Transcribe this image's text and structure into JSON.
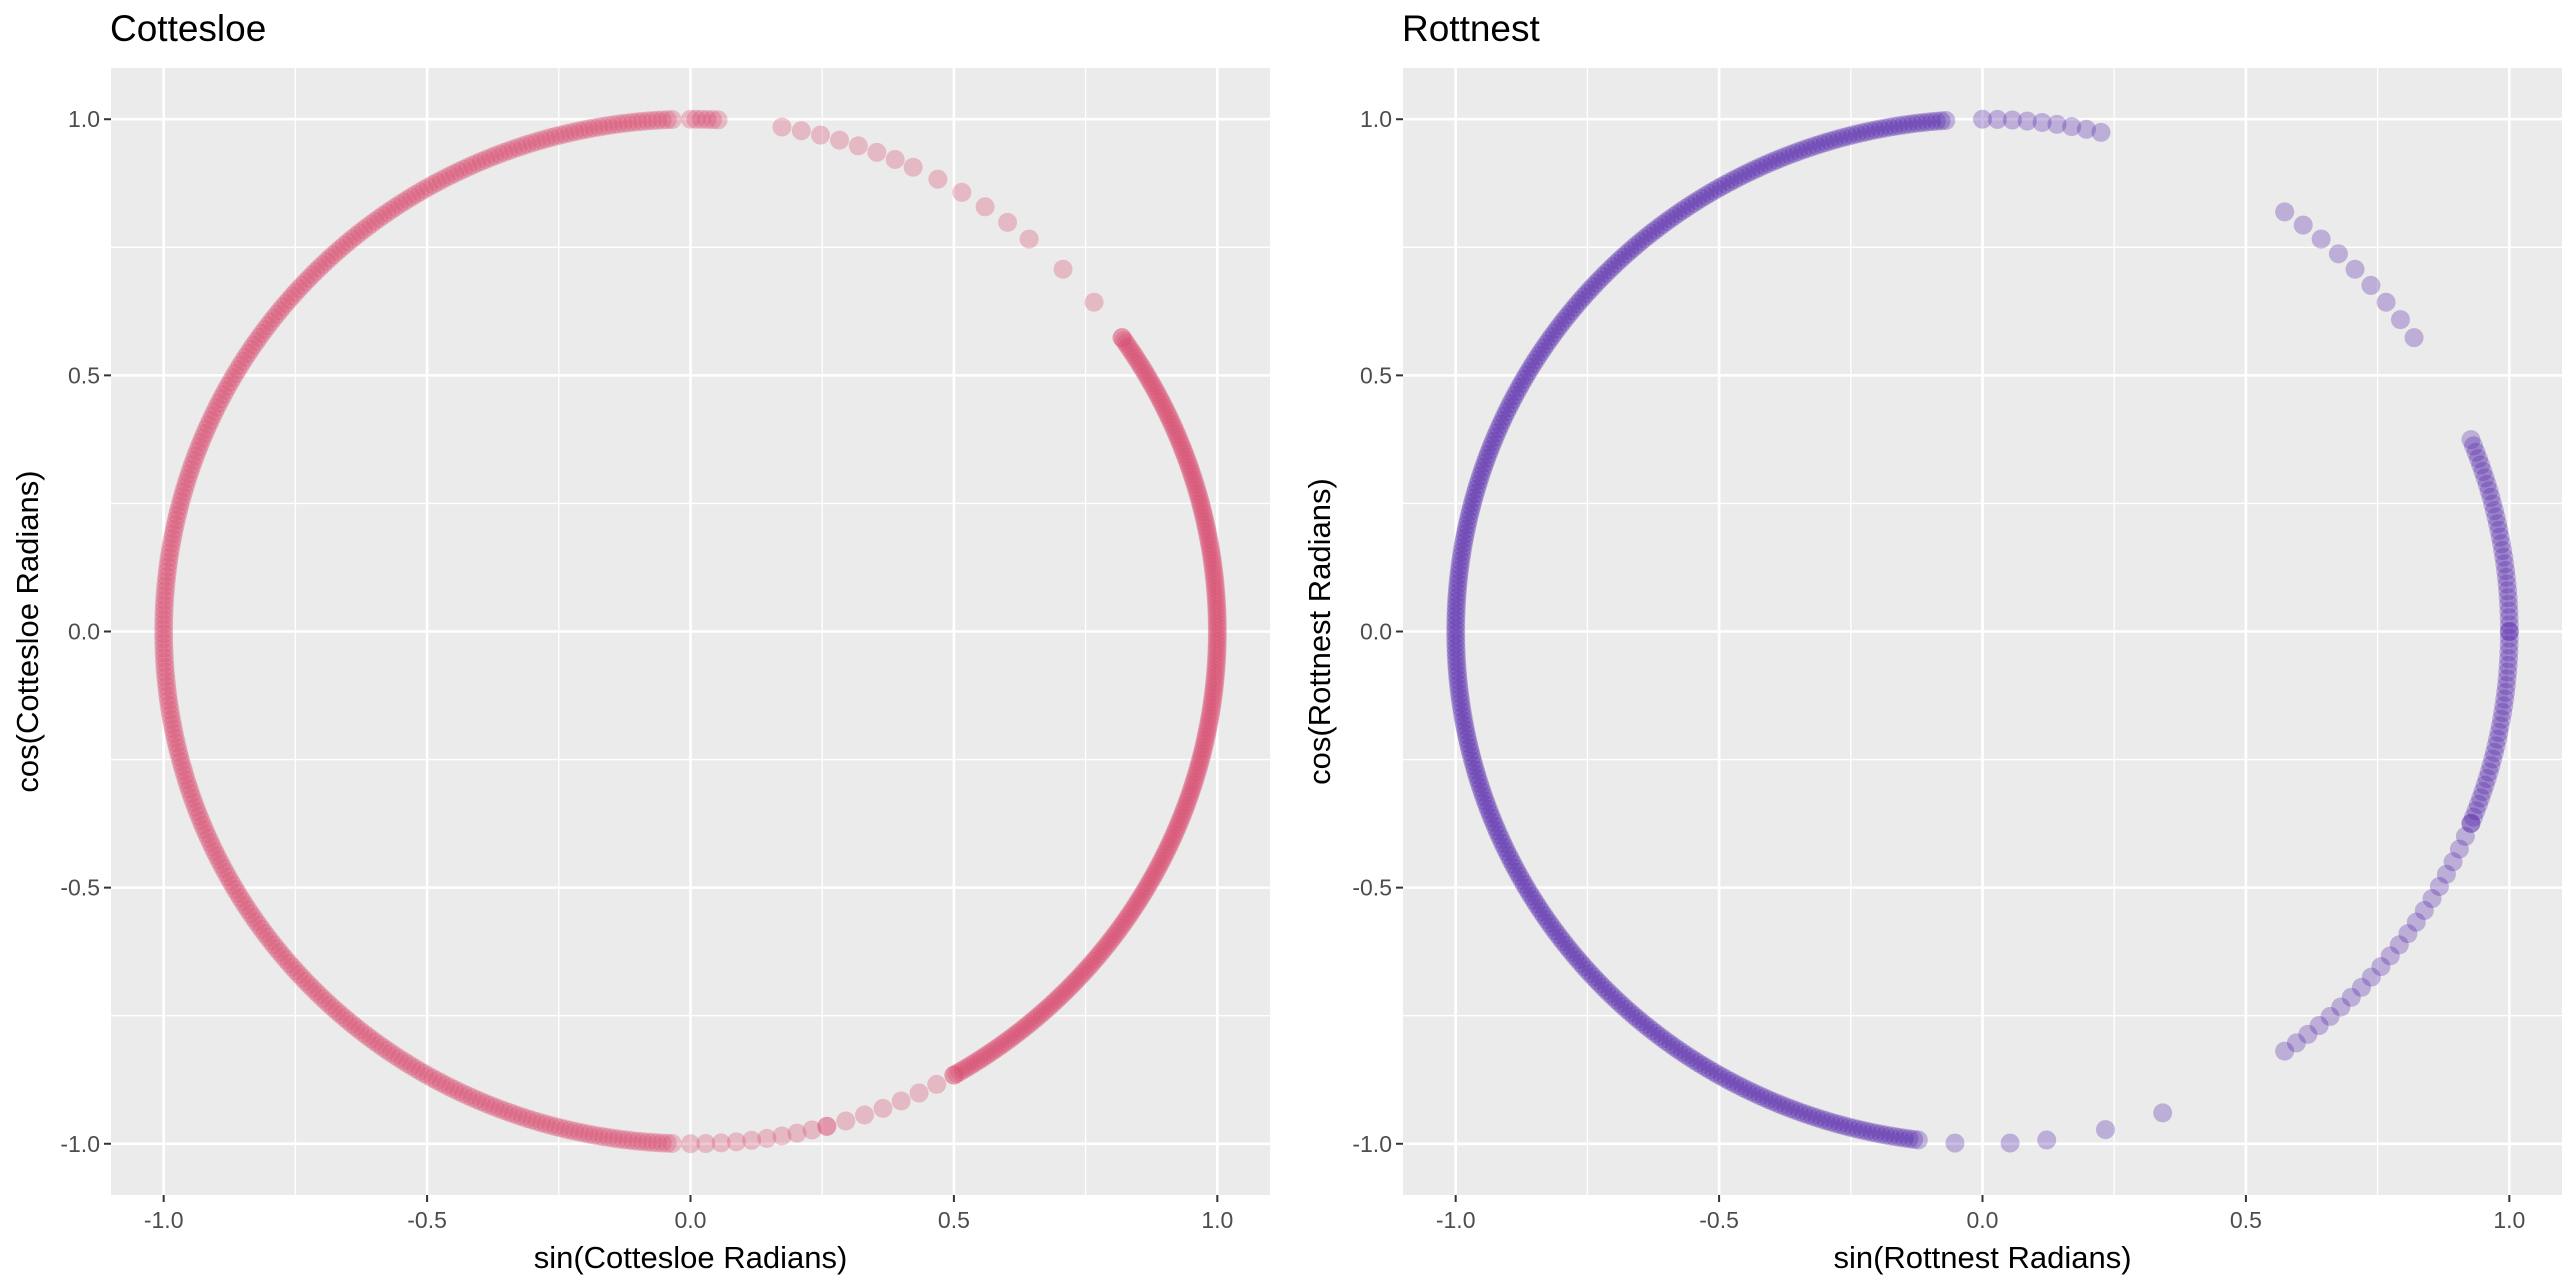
{
  "chart_data": [
    {
      "type": "scatter",
      "title": "Cottesloe",
      "xlabel": "sin(Cottesloe Radians)",
      "ylabel": "cos(Cottesloe Radians)",
      "xlim": [
        -1.1,
        1.1
      ],
      "ylim": [
        -1.1,
        1.1
      ],
      "xticks": [
        -1.0,
        -0.5,
        0.0,
        0.5,
        1.0
      ],
      "yticks": [
        -1.0,
        -0.5,
        0.0,
        0.5,
        1.0
      ],
      "x_tick_labels": [
        "-1.0",
        "-0.5",
        "0.0",
        "0.5",
        "1.0"
      ],
      "y_tick_labels": [
        "-1.0",
        "-0.5",
        "0.0",
        "0.5",
        "1.0"
      ],
      "grid": true,
      "background": "#ebebeb",
      "point_color": "#d6456b",
      "point_opacity": 0.3,
      "points_desc": "points lie on the unit circle; [from_degrees, to_degrees, count] with angle measured clockwise from north (x = sin, y = cos)",
      "point_segments": [
        [
          182,
          358,
          330
        ],
        [
          0,
          3,
          6
        ],
        [
          10,
          25,
          8
        ],
        [
          28,
          40,
          5
        ],
        [
          45,
          55,
          3
        ],
        [
          55,
          150,
          240
        ],
        [
          150,
          165,
          8
        ],
        [
          165,
          180,
          10
        ]
      ]
    },
    {
      "type": "scatter",
      "title": "Rottnest",
      "xlabel": "sin(Rottnest Radians)",
      "ylabel": "cos(Rottnest Radians)",
      "xlim": [
        -1.1,
        1.1
      ],
      "ylim": [
        -1.1,
        1.1
      ],
      "xticks": [
        -1.0,
        -0.5,
        0.0,
        0.5,
        1.0
      ],
      "yticks": [
        -1.0,
        -0.5,
        0.0,
        0.5,
        1.0
      ],
      "x_tick_labels": [
        "-1.0",
        "-0.5",
        "0.0",
        "0.5",
        "1.0"
      ],
      "y_tick_labels": [
        "-1.0",
        "-0.5",
        "0.0",
        "0.5",
        "1.0"
      ],
      "grid": true,
      "background": "#ebebeb",
      "point_color": "#5020a8",
      "point_opacity": 0.3,
      "points_desc": "points lie on the unit circle; [from_degrees, to_degrees, count] with angle measured clockwise from north (x = sin, y = cos)",
      "point_segments": [
        [
          187,
          356,
          330
        ],
        [
          0,
          13,
          9
        ],
        [
          35,
          55,
          9
        ],
        [
          68,
          90,
          30
        ],
        [
          90,
          112,
          30
        ],
        [
          112,
          145,
          22
        ],
        [
          160,
          173,
          3
        ],
        [
          177,
          183,
          2
        ]
      ]
    }
  ]
}
